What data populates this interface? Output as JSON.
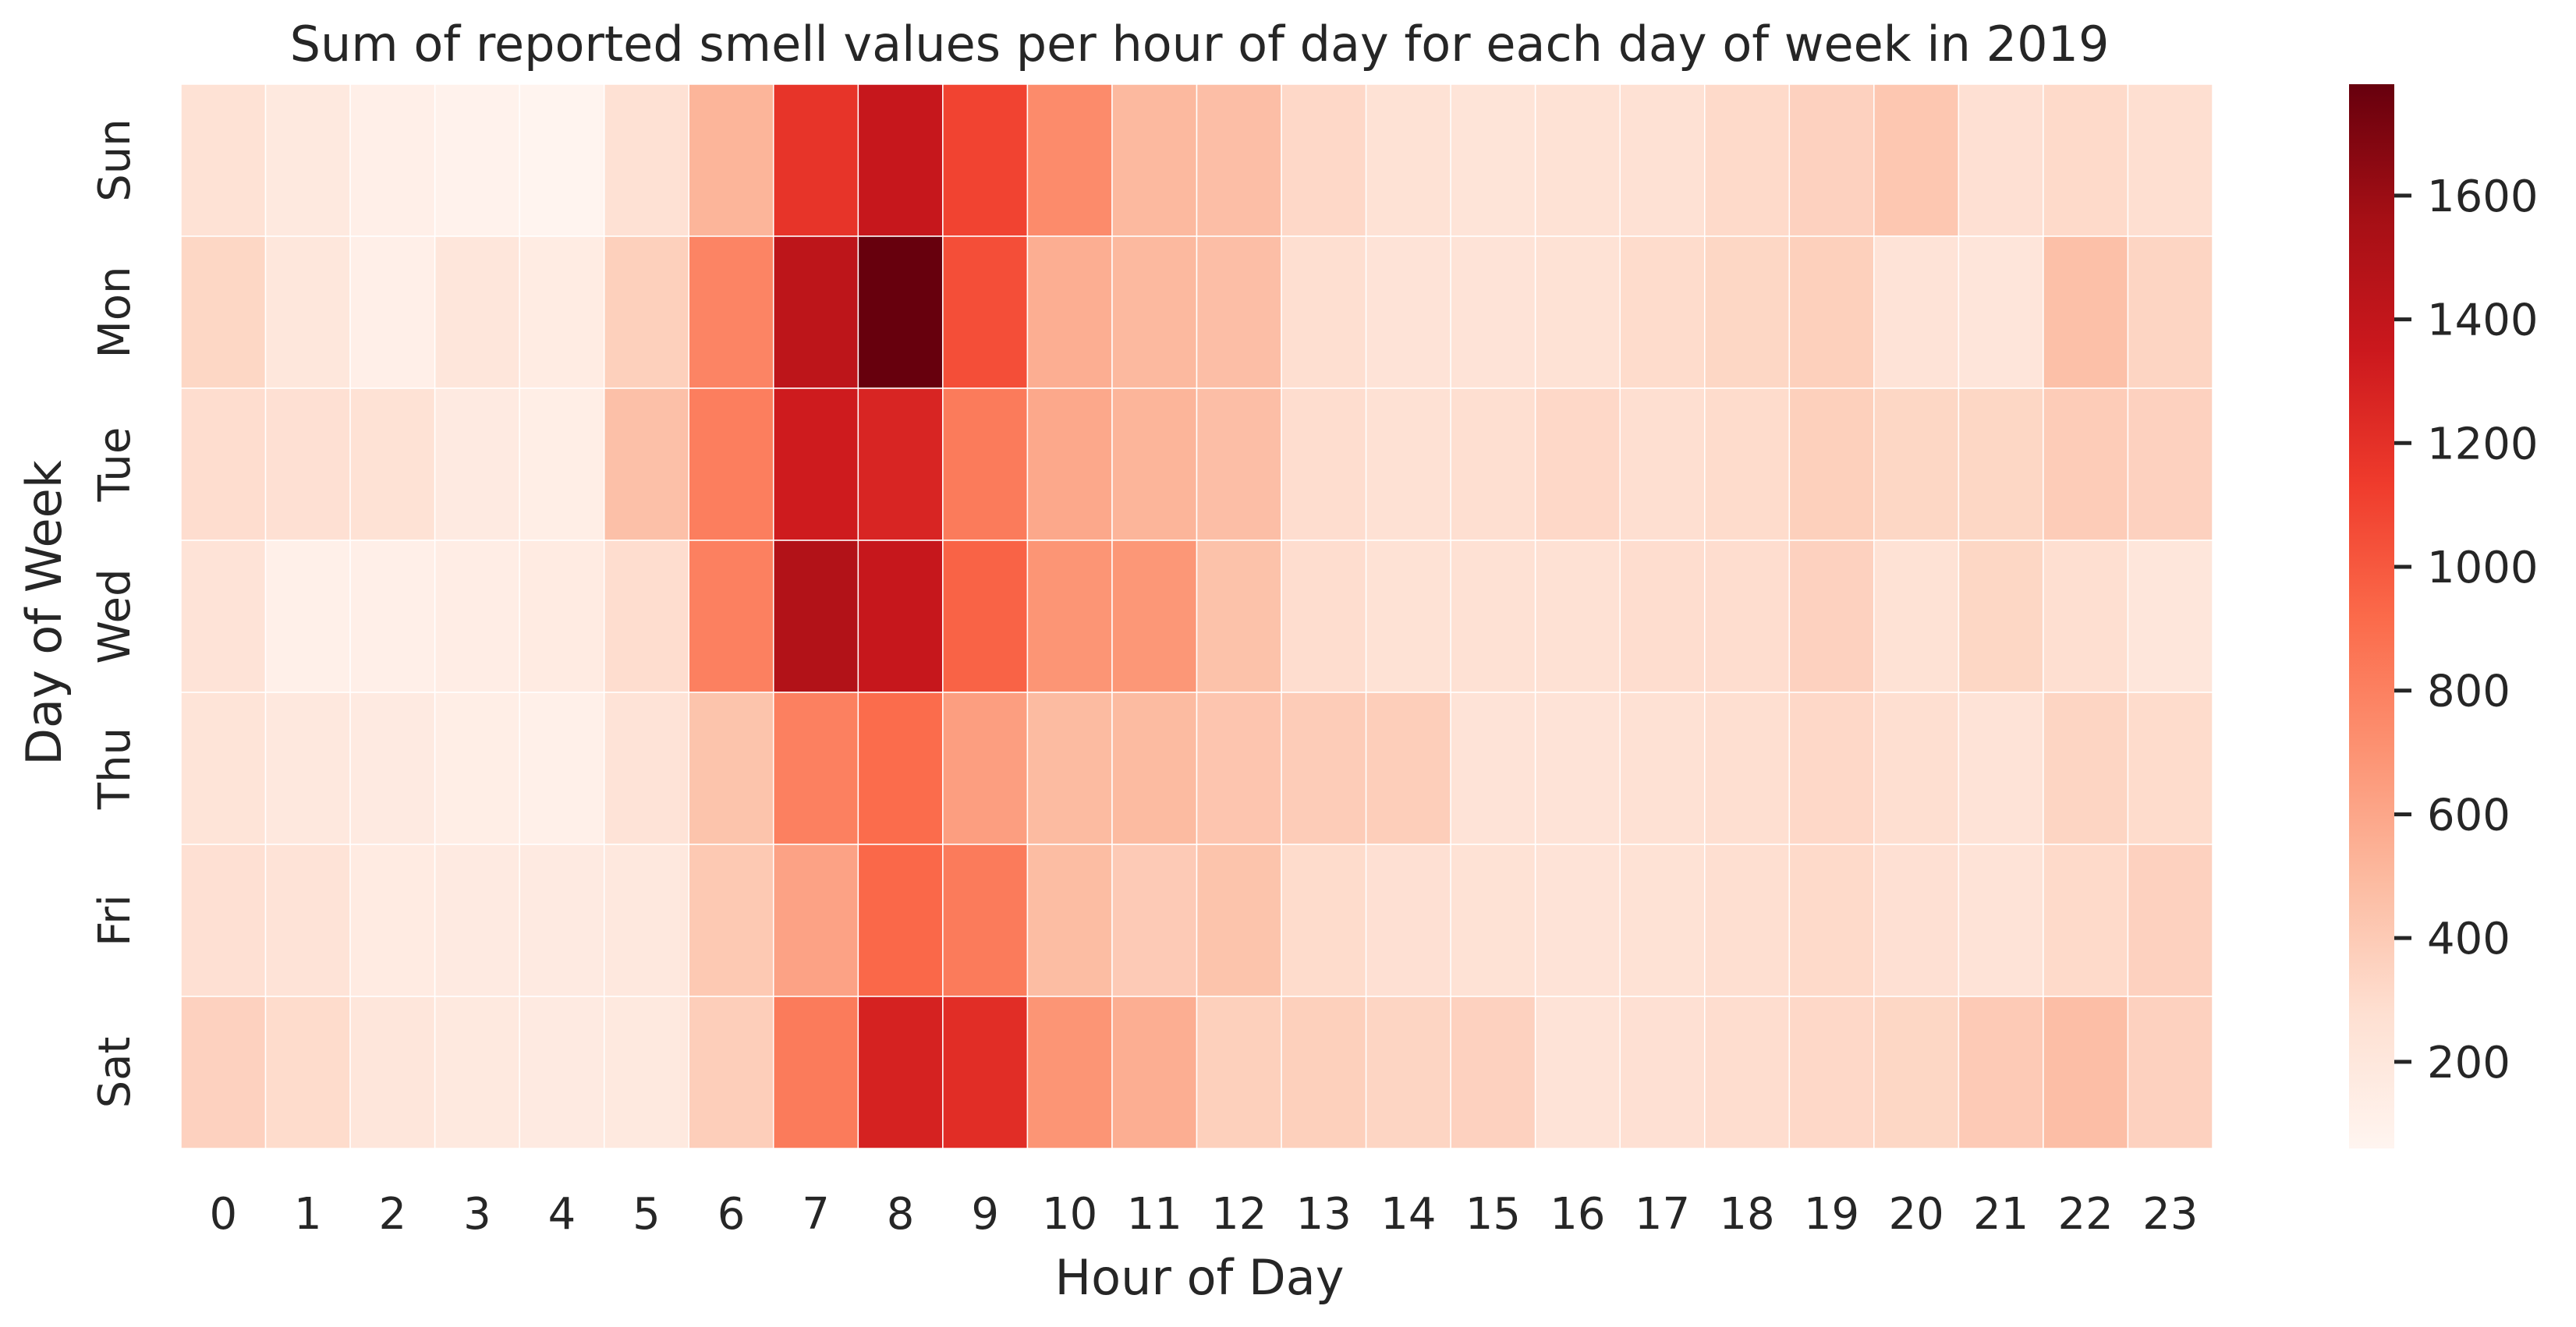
{
  "chart_data": {
    "type": "heatmap",
    "title": "Sum of reported smell values per hour of day for each day of week in 2019",
    "xlabel": "Hour of Day",
    "ylabel": "Day of Week",
    "x": [
      "0",
      "1",
      "2",
      "3",
      "4",
      "5",
      "6",
      "7",
      "8",
      "9",
      "10",
      "11",
      "12",
      "13",
      "14",
      "15",
      "16",
      "17",
      "18",
      "19",
      "20",
      "21",
      "22",
      "23"
    ],
    "y": [
      "Sun",
      "Mon",
      "Tue",
      "Wed",
      "Thu",
      "Fri",
      "Sat"
    ],
    "values": [
      [
        250,
        180,
        120,
        90,
        70,
        260,
        520,
        1180,
        1380,
        1100,
        740,
        500,
        470,
        320,
        250,
        230,
        250,
        260,
        310,
        360,
        420,
        270,
        310,
        280
      ],
      [
        330,
        200,
        120,
        210,
        150,
        370,
        780,
        1430,
        1780,
        1050,
        560,
        500,
        470,
        280,
        240,
        240,
        250,
        300,
        330,
        370,
        240,
        220,
        460,
        340
      ],
      [
        290,
        270,
        250,
        170,
        130,
        460,
        810,
        1330,
        1270,
        830,
        590,
        520,
        470,
        290,
        260,
        280,
        320,
        280,
        300,
        370,
        330,
        330,
        390,
        360
      ],
      [
        240,
        110,
        120,
        140,
        160,
        290,
        800,
        1490,
        1380,
        950,
        690,
        680,
        450,
        290,
        250,
        260,
        260,
        290,
        290,
        360,
        250,
        330,
        280,
        210
      ],
      [
        230,
        190,
        170,
        130,
        110,
        240,
        440,
        800,
        910,
        640,
        490,
        490,
        430,
        390,
        380,
        240,
        240,
        260,
        280,
        320,
        280,
        240,
        340,
        300
      ],
      [
        270,
        240,
        160,
        170,
        170,
        190,
        410,
        620,
        930,
        830,
        480,
        400,
        440,
        300,
        270,
        250,
        240,
        250,
        280,
        310,
        270,
        240,
        310,
        360
      ],
      [
        360,
        300,
        210,
        180,
        170,
        180,
        380,
        830,
        1290,
        1220,
        690,
        560,
        370,
        370,
        340,
        360,
        240,
        270,
        290,
        320,
        330,
        400,
        470,
        360
      ]
    ],
    "colorbar": {
      "colormap": "Reds",
      "vmin": 60,
      "vmax": 1780,
      "ticks": [
        200,
        400,
        600,
        800,
        1000,
        1200,
        1400,
        1600
      ]
    },
    "grid": true,
    "cell_border_color": "#ffffff"
  }
}
